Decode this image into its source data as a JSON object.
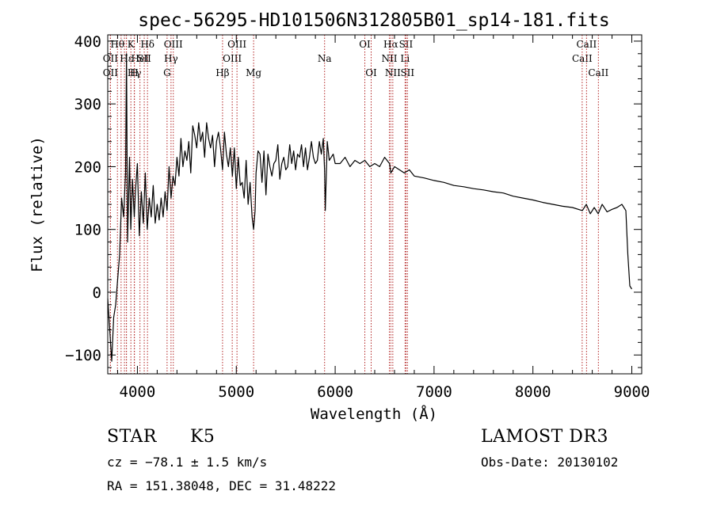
{
  "chart_data": {
    "type": "line",
    "title": "spec-56295-HD101506N312805B01_sp14-181.fits",
    "xlabel": "Wavelength (Å)",
    "ylabel": "Flux (relative)",
    "xlim": [
      3700,
      9100
    ],
    "ylim": [
      -130,
      410
    ],
    "x_ticks": [
      "4000",
      "5000",
      "6000",
      "7000",
      "8000",
      "9000"
    ],
    "y_ticks": [
      "−100",
      "0",
      "100",
      "200",
      "300",
      "400"
    ],
    "x_tick_values": [
      4000,
      5000,
      6000,
      7000,
      8000,
      9000
    ],
    "y_tick_values": [
      -100,
      0,
      100,
      200,
      300,
      400
    ],
    "series": [
      {
        "x": [
          3700,
          3720,
          3740,
          3760,
          3780,
          3800,
          3820,
          3840,
          3860,
          3880,
          3890,
          3900,
          3920,
          3933,
          3950,
          3968,
          3980,
          4000,
          4020,
          4040,
          4060,
          4080,
          4100,
          4120,
          4140,
          4160,
          4180,
          4200,
          4220,
          4240,
          4260,
          4280,
          4300,
          4320,
          4340,
          4360,
          4380,
          4400,
          4420,
          4440,
          4460,
          4480,
          4500,
          4520,
          4540,
          4560,
          4580,
          4600,
          4620,
          4640,
          4660,
          4680,
          4700,
          4720,
          4740,
          4760,
          4780,
          4800,
          4820,
          4840,
          4861,
          4880,
          4900,
          4920,
          4940,
          4960,
          4980,
          5000,
          5020,
          5040,
          5060,
          5080,
          5100,
          5120,
          5140,
          5160,
          5175,
          5190,
          5200,
          5220,
          5240,
          5260,
          5280,
          5300,
          5320,
          5340,
          5360,
          5380,
          5400,
          5420,
          5440,
          5460,
          5480,
          5500,
          5520,
          5540,
          5560,
          5580,
          5600,
          5620,
          5640,
          5660,
          5680,
          5700,
          5720,
          5740,
          5760,
          5780,
          5800,
          5820,
          5840,
          5860,
          5880,
          5893,
          5900,
          5920,
          5940,
          5960,
          5980,
          6000,
          6050,
          6100,
          6150,
          6200,
          6250,
          6300,
          6350,
          6400,
          6450,
          6500,
          6550,
          6563,
          6600,
          6650,
          6700,
          6750,
          6800,
          6900,
          7000,
          7100,
          7200,
          7300,
          7400,
          7500,
          7600,
          7700,
          7800,
          7900,
          8000,
          8100,
          8200,
          8300,
          8400,
          8500,
          8540,
          8580,
          8620,
          8660,
          8700,
          8750,
          8800,
          8850,
          8900,
          8940,
          8960,
          8980,
          9000
        ],
        "y": [
          -10,
          -60,
          -110,
          -40,
          -20,
          20,
          60,
          150,
          120,
          190,
          380,
          80,
          215,
          100,
          180,
          120,
          160,
          205,
          90,
          160,
          110,
          190,
          100,
          150,
          120,
          170,
          110,
          140,
          115,
          150,
          120,
          160,
          130,
          200,
          150,
          185,
          170,
          215,
          185,
          245,
          200,
          225,
          210,
          240,
          190,
          265,
          250,
          230,
          270,
          240,
          255,
          215,
          270,
          245,
          230,
          250,
          200,
          240,
          255,
          230,
          195,
          255,
          220,
          200,
          230,
          185,
          230,
          165,
          215,
          170,
          175,
          150,
          210,
          140,
          175,
          120,
          100,
          130,
          190,
          225,
          220,
          175,
          225,
          155,
          220,
          200,
          185,
          205,
          210,
          235,
          180,
          205,
          215,
          195,
          200,
          235,
          205,
          225,
          195,
          220,
          215,
          235,
          200,
          230,
          195,
          215,
          240,
          215,
          205,
          210,
          240,
          220,
          245,
          195,
          130,
          240,
          210,
          215,
          220,
          205,
          205,
          215,
          200,
          210,
          205,
          210,
          200,
          205,
          200,
          215,
          205,
          190,
          200,
          195,
          190,
          195,
          185,
          182,
          178,
          175,
          170,
          168,
          165,
          163,
          160,
          158,
          153,
          150,
          147,
          143,
          140,
          137,
          135,
          130,
          140,
          125,
          135,
          125,
          140,
          128,
          132,
          135,
          140,
          130,
          60,
          10,
          5
        ]
      }
    ],
    "line_markers": [
      {
        "x": 3798,
        "label": "Hθ",
        "row": 1
      },
      {
        "x": 3727,
        "label": "OII",
        "row": 2
      },
      {
        "x": 3727,
        "label": "OII",
        "row": 3
      },
      {
        "x": 3835,
        "label": "",
        "row": 0
      },
      {
        "x": 3869,
        "label": "",
        "row": 0
      },
      {
        "x": 3889,
        "label": "Hε",
        "row": 2
      },
      {
        "x": 3934,
        "label": "K",
        "row": 1
      },
      {
        "x": 3889,
        "label": "",
        "row": 0
      },
      {
        "x": 3970,
        "label": "Hγ",
        "row": 3
      },
      {
        "x": 3968,
        "label": "H",
        "row": 3
      },
      {
        "x": 4026,
        "label": "HeI",
        "row": 2
      },
      {
        "x": 4069,
        "label": "SII",
        "row": 2
      },
      {
        "x": 4102,
        "label": "Hδ",
        "row": 1
      },
      {
        "x": 4300,
        "label": "G",
        "row": 3
      },
      {
        "x": 4340,
        "label": "Hγ",
        "row": 2
      },
      {
        "x": 4363,
        "label": "OIII",
        "row": 1
      },
      {
        "x": 4861,
        "label": "Hβ",
        "row": 3
      },
      {
        "x": 4959,
        "label": "OIII",
        "row": 2
      },
      {
        "x": 5007,
        "label": "OIII",
        "row": 1
      },
      {
        "x": 5175,
        "label": "Mg",
        "row": 3
      },
      {
        "x": 5893,
        "label": "Na",
        "row": 2
      },
      {
        "x": 6300,
        "label": "OI",
        "row": 1
      },
      {
        "x": 6364,
        "label": "OI",
        "row": 3
      },
      {
        "x": 6548,
        "label": "NII",
        "row": 2
      },
      {
        "x": 6563,
        "label": "Hα",
        "row": 1
      },
      {
        "x": 6583,
        "label": "NII",
        "row": 3
      },
      {
        "x": 6707,
        "label": "Li",
        "row": 2
      },
      {
        "x": 6716,
        "label": "SII",
        "row": 1
      },
      {
        "x": 6731,
        "label": "SII",
        "row": 3
      },
      {
        "x": 8498,
        "label": "CaII",
        "row": 2
      },
      {
        "x": 8542,
        "label": "CaII",
        "row": 1
      },
      {
        "x": 8662,
        "label": "CaII",
        "row": 3
      }
    ]
  },
  "info": {
    "object_class": "STAR",
    "subclass": "K5",
    "survey": "LAMOST DR3",
    "redshift": "cz = −78.1 ± 1.5 km/s",
    "obs_date": "Obs-Date: 20130102",
    "coords": "RA = 151.38048, DEC =  31.48222"
  },
  "colors": {
    "spectrum": "#000000",
    "marker_line": "#b22222",
    "axes": "#000000"
  }
}
